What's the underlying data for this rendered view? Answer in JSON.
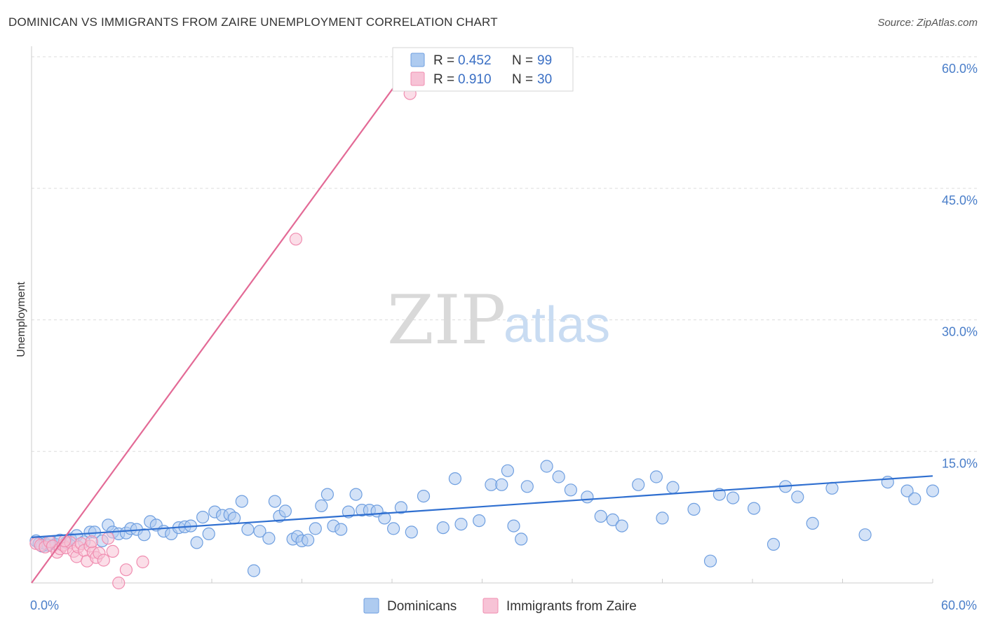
{
  "header": {
    "title": "DOMINICAN VS IMMIGRANTS FROM ZAIRE UNEMPLOYMENT CORRELATION CHART",
    "source": "Source: ZipAtlas.com"
  },
  "watermark": {
    "zip": "ZIP",
    "atlas": "atlas"
  },
  "chart_data": {
    "type": "scatter",
    "title": "DOMINICAN VS IMMIGRANTS FROM ZAIRE UNEMPLOYMENT CORRELATION CHART",
    "xlabel": "",
    "ylabel": "Unemployment",
    "xlim": [
      0,
      60
    ],
    "ylim": [
      0,
      60
    ],
    "x_tick_labels": {
      "left": "0.0%",
      "right": "60.0%"
    },
    "y_ticks": [
      {
        "value": 15,
        "label": "15.0%"
      },
      {
        "value": 30,
        "label": "30.0%"
      },
      {
        "value": 45,
        "label": "45.0%"
      },
      {
        "value": 60,
        "label": "60.0%"
      }
    ],
    "grid": true,
    "legend": {
      "position": "top-center",
      "entries": [
        {
          "r_label": "R = ",
          "r_value": "0.452",
          "n_label": "N = ",
          "n_value": "99",
          "color": "#6f9fe0"
        },
        {
          "r_label": "R = ",
          "r_value": "0.910",
          "n_label": "N = ",
          "n_value": "30",
          "color": "#f08db0"
        }
      ]
    },
    "series": [
      {
        "name": "Dominicans",
        "color": "#6f9fe0",
        "fill": "#aecbf0",
        "trend": {
          "x": [
            0,
            60
          ],
          "y": [
            5.2,
            12.2
          ]
        },
        "points": [
          [
            0.3,
            4.8
          ],
          [
            0.5,
            4.5
          ],
          [
            0.7,
            4.2
          ],
          [
            0.9,
            4.5
          ],
          [
            1.1,
            4.3
          ],
          [
            1.3,
            4.7
          ],
          [
            1.6,
            4.4
          ],
          [
            1.9,
            4.9
          ],
          [
            2.3,
            4.6
          ],
          [
            2.6,
            5.0
          ],
          [
            3.0,
            5.4
          ],
          [
            3.5,
            4.7
          ],
          [
            3.9,
            5.8
          ],
          [
            4.2,
            5.8
          ],
          [
            4.7,
            4.8
          ],
          [
            5.1,
            6.6
          ],
          [
            5.4,
            5.8
          ],
          [
            5.8,
            5.6
          ],
          [
            6.3,
            5.7
          ],
          [
            6.6,
            6.2
          ],
          [
            7.0,
            6.1
          ],
          [
            7.5,
            5.5
          ],
          [
            7.9,
            7.0
          ],
          [
            8.3,
            6.6
          ],
          [
            8.8,
            5.9
          ],
          [
            9.3,
            5.6
          ],
          [
            9.8,
            6.3
          ],
          [
            10.2,
            6.4
          ],
          [
            10.6,
            6.5
          ],
          [
            11.0,
            4.6
          ],
          [
            11.4,
            7.5
          ],
          [
            11.8,
            5.6
          ],
          [
            12.2,
            8.1
          ],
          [
            12.7,
            7.7
          ],
          [
            13.2,
            7.8
          ],
          [
            13.5,
            7.4
          ],
          [
            14.0,
            9.3
          ],
          [
            14.4,
            6.1
          ],
          [
            14.8,
            1.4
          ],
          [
            15.2,
            5.9
          ],
          [
            15.8,
            5.1
          ],
          [
            16.2,
            9.3
          ],
          [
            16.5,
            7.6
          ],
          [
            16.9,
            8.2
          ],
          [
            17.4,
            5.0
          ],
          [
            17.7,
            5.3
          ],
          [
            18.0,
            4.8
          ],
          [
            18.4,
            4.9
          ],
          [
            18.9,
            6.2
          ],
          [
            19.3,
            8.8
          ],
          [
            19.7,
            10.1
          ],
          [
            20.1,
            6.5
          ],
          [
            20.6,
            6.1
          ],
          [
            21.1,
            8.1
          ],
          [
            21.6,
            10.1
          ],
          [
            22.0,
            8.3
          ],
          [
            22.5,
            8.3
          ],
          [
            23.0,
            8.2
          ],
          [
            23.5,
            7.4
          ],
          [
            24.1,
            6.2
          ],
          [
            24.6,
            8.6
          ],
          [
            25.3,
            5.8
          ],
          [
            26.1,
            9.9
          ],
          [
            27.4,
            6.3
          ],
          [
            28.2,
            11.9
          ],
          [
            28.6,
            6.7
          ],
          [
            29.8,
            7.1
          ],
          [
            30.6,
            11.2
          ],
          [
            31.3,
            11.2
          ],
          [
            31.7,
            12.8
          ],
          [
            32.1,
            6.5
          ],
          [
            32.6,
            5.0
          ],
          [
            33.0,
            11.0
          ],
          [
            34.3,
            13.3
          ],
          [
            35.1,
            12.1
          ],
          [
            35.9,
            10.6
          ],
          [
            37.0,
            9.8
          ],
          [
            37.9,
            7.6
          ],
          [
            38.7,
            7.2
          ],
          [
            39.3,
            6.5
          ],
          [
            40.4,
            11.2
          ],
          [
            41.6,
            12.1
          ],
          [
            42.0,
            7.4
          ],
          [
            42.7,
            10.9
          ],
          [
            44.1,
            8.4
          ],
          [
            45.2,
            2.5
          ],
          [
            45.8,
            10.1
          ],
          [
            46.7,
            9.7
          ],
          [
            48.1,
            8.5
          ],
          [
            49.4,
            4.4
          ],
          [
            50.2,
            11.0
          ],
          [
            51.0,
            9.8
          ],
          [
            52.0,
            6.8
          ],
          [
            53.3,
            10.8
          ],
          [
            55.5,
            5.5
          ],
          [
            57.0,
            11.5
          ],
          [
            58.3,
            10.5
          ],
          [
            58.8,
            9.6
          ],
          [
            60.0,
            10.5
          ]
        ]
      },
      {
        "name": "Immigrants from Zaire",
        "color": "#f08db0",
        "fill": "#f7c3d6",
        "trend": {
          "x": [
            0,
            25.6
          ],
          "y": [
            0,
            60
          ]
        },
        "points": [
          [
            0.3,
            4.5
          ],
          [
            0.6,
            4.3
          ],
          [
            0.9,
            4.1
          ],
          [
            1.2,
            4.7
          ],
          [
            1.4,
            4.2
          ],
          [
            1.7,
            3.5
          ],
          [
            1.9,
            3.9
          ],
          [
            2.1,
            4.3
          ],
          [
            2.3,
            4.0
          ],
          [
            2.6,
            4.6
          ],
          [
            2.8,
            3.6
          ],
          [
            3.0,
            3.0
          ],
          [
            3.1,
            4.1
          ],
          [
            3.3,
            4.5
          ],
          [
            3.5,
            3.7
          ],
          [
            3.7,
            2.5
          ],
          [
            3.9,
            4.2
          ],
          [
            4.1,
            3.5
          ],
          [
            4.3,
            2.9
          ],
          [
            4.5,
            3.4
          ],
          [
            4.8,
            2.6
          ],
          [
            5.1,
            5.1
          ],
          [
            5.4,
            3.6
          ],
          [
            5.8,
            0.0
          ],
          [
            6.3,
            1.5
          ],
          [
            7.4,
            2.4
          ],
          [
            4.0,
            4.7
          ],
          [
            2.2,
            4.8
          ],
          [
            17.6,
            39.2
          ],
          [
            25.2,
            55.8
          ]
        ]
      }
    ]
  },
  "bottom_legend": [
    {
      "label": "Dominicans",
      "color": "#6f9fe0"
    },
    {
      "label": "Immigrants from Zaire",
      "color": "#f08db0"
    }
  ]
}
